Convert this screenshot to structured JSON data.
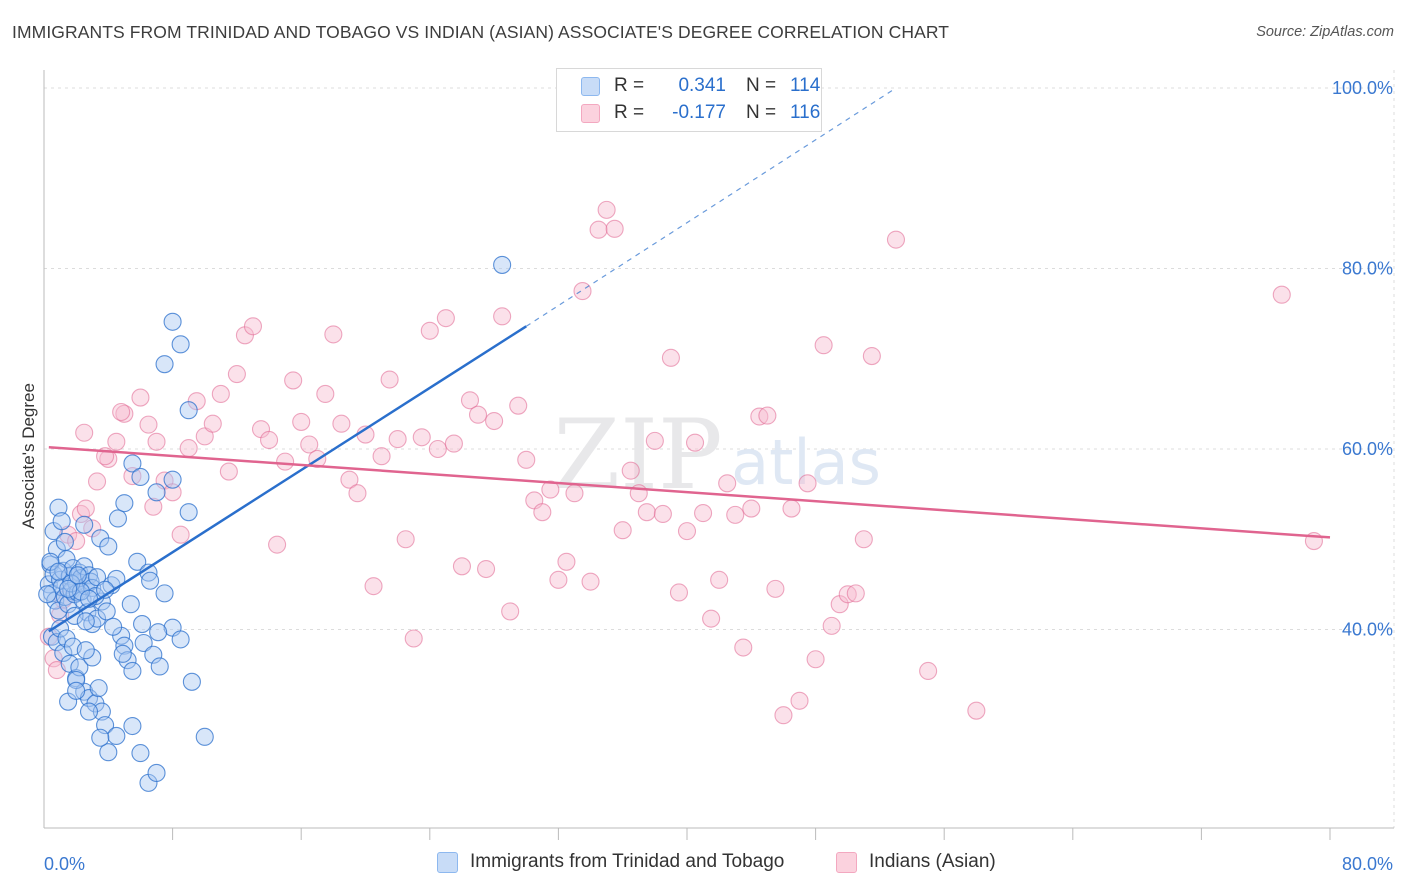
{
  "title": "IMMIGRANTS FROM TRINIDAD AND TOBAGO VS INDIAN (ASIAN) ASSOCIATE'S DEGREE CORRELATION CHART",
  "source": "Source: ZipAtlas.com",
  "watermark": {
    "zip": "ZIP",
    "atlas": "atlas"
  },
  "legend": {
    "rows": [
      {
        "r_label": "R =",
        "r_value": "0.341",
        "n_label": "N =",
        "n_value": "114",
        "color": "#8db8ef"
      },
      {
        "r_label": "R =",
        "r_value": "-0.177",
        "n_label": "N =",
        "n_value": "116",
        "color": "#f3a8c0"
      }
    ]
  },
  "bottom_legend": {
    "items": [
      {
        "label": "Immigrants from Trinidad and Tobago",
        "color": "#8db8ef"
      },
      {
        "label": "Indians (Asian)",
        "color": "#f3a8c0"
      }
    ]
  },
  "colors": {
    "blue": "#2a6fcc",
    "blue_fill": "#a9c8f2",
    "pink": "#e0648f",
    "pink_fill": "#f6bcd0",
    "axis_text": "#3a78d0"
  },
  "chart_data": {
    "type": "scatter",
    "title": "IMMIGRANTS FROM TRINIDAD AND TOBAGO VS INDIAN (ASIAN) ASSOCIATE'S DEGREE CORRELATION CHART",
    "xlabel": "",
    "ylabel": "Associate's Degree",
    "xlim": [
      0,
      80
    ],
    "ylim": [
      18,
      102
    ],
    "x_tick_labels": [
      "0.0%",
      "80.0%"
    ],
    "y_ticks": [
      40,
      60,
      80,
      100
    ],
    "y_tick_labels": [
      "40.0%",
      "60.0%",
      "80.0%",
      "100.0%"
    ],
    "grid": true,
    "legend_position": "top-center",
    "series": [
      {
        "name": "Immigrants from Trinidad and Tobago",
        "color": "#2a6fcc",
        "trend": {
          "x": [
            0.3,
            30.0
          ],
          "y": [
            39.8,
            73.6
          ],
          "extended_to": [
            53.0,
            100.0
          ]
        },
        "points": [
          [
            0.3,
            45.0
          ],
          [
            0.4,
            47.2
          ],
          [
            0.5,
            44.0
          ],
          [
            0.6,
            46.1
          ],
          [
            0.7,
            43.2
          ],
          [
            0.8,
            48.9
          ],
          [
            0.9,
            42.1
          ],
          [
            1.0,
            45.5
          ],
          [
            1.1,
            44.7
          ],
          [
            1.2,
            46.5
          ],
          [
            1.3,
            43.6
          ],
          [
            1.4,
            47.8
          ],
          [
            1.5,
            42.8
          ],
          [
            1.6,
            45.9
          ],
          [
            1.7,
            44.3
          ],
          [
            1.8,
            46.8
          ],
          [
            1.9,
            43.9
          ],
          [
            2.0,
            45.2
          ],
          [
            2.1,
            44.1
          ],
          [
            2.2,
            46.3
          ],
          [
            2.3,
            45.7
          ],
          [
            2.4,
            43.3
          ],
          [
            2.5,
            47.0
          ],
          [
            2.6,
            44.8
          ],
          [
            2.7,
            41.9
          ],
          [
            2.8,
            46.0
          ],
          [
            2.9,
            45.3
          ],
          [
            3.0,
            44.6
          ],
          [
            0.5,
            39.2
          ],
          [
            0.8,
            38.6
          ],
          [
            1.0,
            40.1
          ],
          [
            1.2,
            37.4
          ],
          [
            1.4,
            39.0
          ],
          [
            1.6,
            36.2
          ],
          [
            1.8,
            38.1
          ],
          [
            2.0,
            34.6
          ],
          [
            2.2,
            35.8
          ],
          [
            2.5,
            33.1
          ],
          [
            2.8,
            32.4
          ],
          [
            3.0,
            36.9
          ],
          [
            3.2,
            31.8
          ],
          [
            3.4,
            33.5
          ],
          [
            3.6,
            30.9
          ],
          [
            3.8,
            29.4
          ],
          [
            1.5,
            32.0
          ],
          [
            2.0,
            34.4
          ],
          [
            2.6,
            37.7
          ],
          [
            3.0,
            40.6
          ],
          [
            3.3,
            41.2
          ],
          [
            3.6,
            43.1
          ],
          [
            3.9,
            42.0
          ],
          [
            4.2,
            44.9
          ],
          [
            4.5,
            45.6
          ],
          [
            4.8,
            39.3
          ],
          [
            5.0,
            38.2
          ],
          [
            5.2,
            36.6
          ],
          [
            5.5,
            35.4
          ],
          [
            0.6,
            50.9
          ],
          [
            0.9,
            53.5
          ],
          [
            1.1,
            52.0
          ],
          [
            1.3,
            49.7
          ],
          [
            2.5,
            51.6
          ],
          [
            3.5,
            50.1
          ],
          [
            4.0,
            49.2
          ],
          [
            4.6,
            52.3
          ],
          [
            5.0,
            54.0
          ],
          [
            5.5,
            58.4
          ],
          [
            6.0,
            56.9
          ],
          [
            7.0,
            55.2
          ],
          [
            8.0,
            56.6
          ],
          [
            9.0,
            53.0
          ],
          [
            5.8,
            47.5
          ],
          [
            6.5,
            46.3
          ],
          [
            7.5,
            44.0
          ],
          [
            8.0,
            40.2
          ],
          [
            8.5,
            38.9
          ],
          [
            9.2,
            34.2
          ],
          [
            10.0,
            28.1
          ],
          [
            4.5,
            28.2
          ],
          [
            5.5,
            29.3
          ],
          [
            6.0,
            26.3
          ],
          [
            6.5,
            23.0
          ],
          [
            7.0,
            24.1
          ],
          [
            4.0,
            26.4
          ],
          [
            3.5,
            28.0
          ],
          [
            2.8,
            30.9
          ],
          [
            2.0,
            33.2
          ],
          [
            7.5,
            69.4
          ],
          [
            8.0,
            74.1
          ],
          [
            8.5,
            71.6
          ],
          [
            9.0,
            64.3
          ],
          [
            28.5,
            80.4
          ],
          [
            6.2,
            38.5
          ],
          [
            6.8,
            37.2
          ],
          [
            7.2,
            35.9
          ],
          [
            1.9,
            41.5
          ],
          [
            2.6,
            40.9
          ],
          [
            3.2,
            43.7
          ],
          [
            0.4,
            47.5
          ],
          [
            1.7,
            45.1
          ],
          [
            2.3,
            44.2
          ],
          [
            0.2,
            43.9
          ],
          [
            0.9,
            46.4
          ],
          [
            1.5,
            44.5
          ],
          [
            2.1,
            46.0
          ],
          [
            2.8,
            43.4
          ],
          [
            3.3,
            45.8
          ],
          [
            3.8,
            44.4
          ],
          [
            4.3,
            40.3
          ],
          [
            4.9,
            37.3
          ],
          [
            5.4,
            42.8
          ],
          [
            6.1,
            40.6
          ],
          [
            6.6,
            45.4
          ],
          [
            7.1,
            39.7
          ]
        ]
      },
      {
        "name": "Indians (Asian)",
        "color": "#e0648f",
        "trend": {
          "x": [
            0.3,
            80.0
          ],
          "y": [
            60.2,
            50.2
          ]
        },
        "points": [
          [
            0.3,
            39.2
          ],
          [
            0.6,
            36.8
          ],
          [
            0.8,
            35.5
          ],
          [
            1.0,
            41.6
          ],
          [
            1.2,
            43.3
          ],
          [
            1.5,
            50.5
          ],
          [
            2.0,
            49.8
          ],
          [
            2.3,
            52.8
          ],
          [
            2.6,
            53.4
          ],
          [
            3.0,
            51.2
          ],
          [
            3.3,
            56.4
          ],
          [
            4.0,
            58.9
          ],
          [
            4.5,
            60.8
          ],
          [
            5.0,
            63.9
          ],
          [
            5.5,
            57.0
          ],
          [
            6.0,
            65.7
          ],
          [
            6.5,
            62.7
          ],
          [
            7.0,
            60.8
          ],
          [
            7.5,
            56.5
          ],
          [
            8.0,
            55.2
          ],
          [
            8.5,
            50.5
          ],
          [
            9.0,
            60.1
          ],
          [
            9.5,
            65.3
          ],
          [
            10.0,
            61.4
          ],
          [
            10.5,
            62.8
          ],
          [
            11.0,
            66.1
          ],
          [
            11.5,
            57.5
          ],
          [
            12.0,
            68.3
          ],
          [
            12.5,
            72.6
          ],
          [
            13.0,
            73.6
          ],
          [
            13.5,
            62.2
          ],
          [
            14.0,
            61.0
          ],
          [
            14.5,
            49.4
          ],
          [
            15.0,
            58.6
          ],
          [
            15.5,
            67.6
          ],
          [
            16.0,
            63.0
          ],
          [
            16.5,
            60.5
          ],
          [
            17.0,
            58.9
          ],
          [
            17.5,
            66.1
          ],
          [
            18.0,
            72.7
          ],
          [
            18.5,
            62.8
          ],
          [
            19.0,
            56.6
          ],
          [
            19.5,
            55.1
          ],
          [
            20.0,
            61.6
          ],
          [
            20.5,
            44.8
          ],
          [
            21.0,
            59.2
          ],
          [
            21.5,
            67.7
          ],
          [
            22.0,
            61.1
          ],
          [
            22.5,
            50.0
          ],
          [
            23.0,
            39.0
          ],
          [
            23.5,
            61.3
          ],
          [
            24.0,
            73.1
          ],
          [
            24.5,
            60.0
          ],
          [
            25.0,
            74.5
          ],
          [
            25.5,
            60.6
          ],
          [
            26.0,
            47.0
          ],
          [
            26.5,
            65.4
          ],
          [
            27.0,
            63.8
          ],
          [
            27.5,
            46.7
          ],
          [
            28.0,
            63.1
          ],
          [
            28.5,
            74.7
          ],
          [
            29.0,
            42.0
          ],
          [
            29.5,
            64.8
          ],
          [
            30.0,
            58.8
          ],
          [
            30.5,
            54.3
          ],
          [
            31.0,
            53.0
          ],
          [
            31.5,
            55.5
          ],
          [
            32.0,
            45.5
          ],
          [
            32.5,
            47.5
          ],
          [
            33.0,
            55.1
          ],
          [
            33.5,
            77.5
          ],
          [
            34.0,
            45.3
          ],
          [
            34.5,
            84.3
          ],
          [
            35.0,
            86.5
          ],
          [
            35.5,
            84.4
          ],
          [
            36.0,
            51.0
          ],
          [
            36.5,
            57.6
          ],
          [
            37.0,
            55.1
          ],
          [
            37.5,
            53.0
          ],
          [
            38.0,
            60.9
          ],
          [
            38.5,
            52.8
          ],
          [
            39.0,
            70.1
          ],
          [
            39.5,
            44.1
          ],
          [
            40.0,
            50.9
          ],
          [
            40.5,
            60.7
          ],
          [
            41.0,
            52.9
          ],
          [
            41.5,
            41.2
          ],
          [
            42.0,
            45.5
          ],
          [
            42.5,
            56.2
          ],
          [
            43.0,
            52.7
          ],
          [
            43.5,
            38.0
          ],
          [
            44.0,
            53.4
          ],
          [
            44.5,
            63.6
          ],
          [
            45.0,
            63.7
          ],
          [
            45.5,
            44.5
          ],
          [
            46.0,
            30.5
          ],
          [
            46.5,
            53.4
          ],
          [
            47.0,
            32.1
          ],
          [
            47.5,
            56.2
          ],
          [
            48.0,
            36.7
          ],
          [
            48.5,
            71.5
          ],
          [
            49.0,
            40.4
          ],
          [
            49.5,
            42.8
          ],
          [
            50.0,
            43.9
          ],
          [
            50.5,
            44.0
          ],
          [
            51.0,
            50.0
          ],
          [
            51.5,
            70.3
          ],
          [
            53.0,
            83.2
          ],
          [
            55.0,
            35.4
          ],
          [
            58.0,
            31.0
          ],
          [
            79.0,
            49.8
          ],
          [
            77.0,
            77.1
          ],
          [
            2.5,
            61.8
          ],
          [
            3.8,
            59.2
          ],
          [
            4.8,
            64.1
          ],
          [
            6.8,
            53.6
          ]
        ]
      }
    ]
  }
}
